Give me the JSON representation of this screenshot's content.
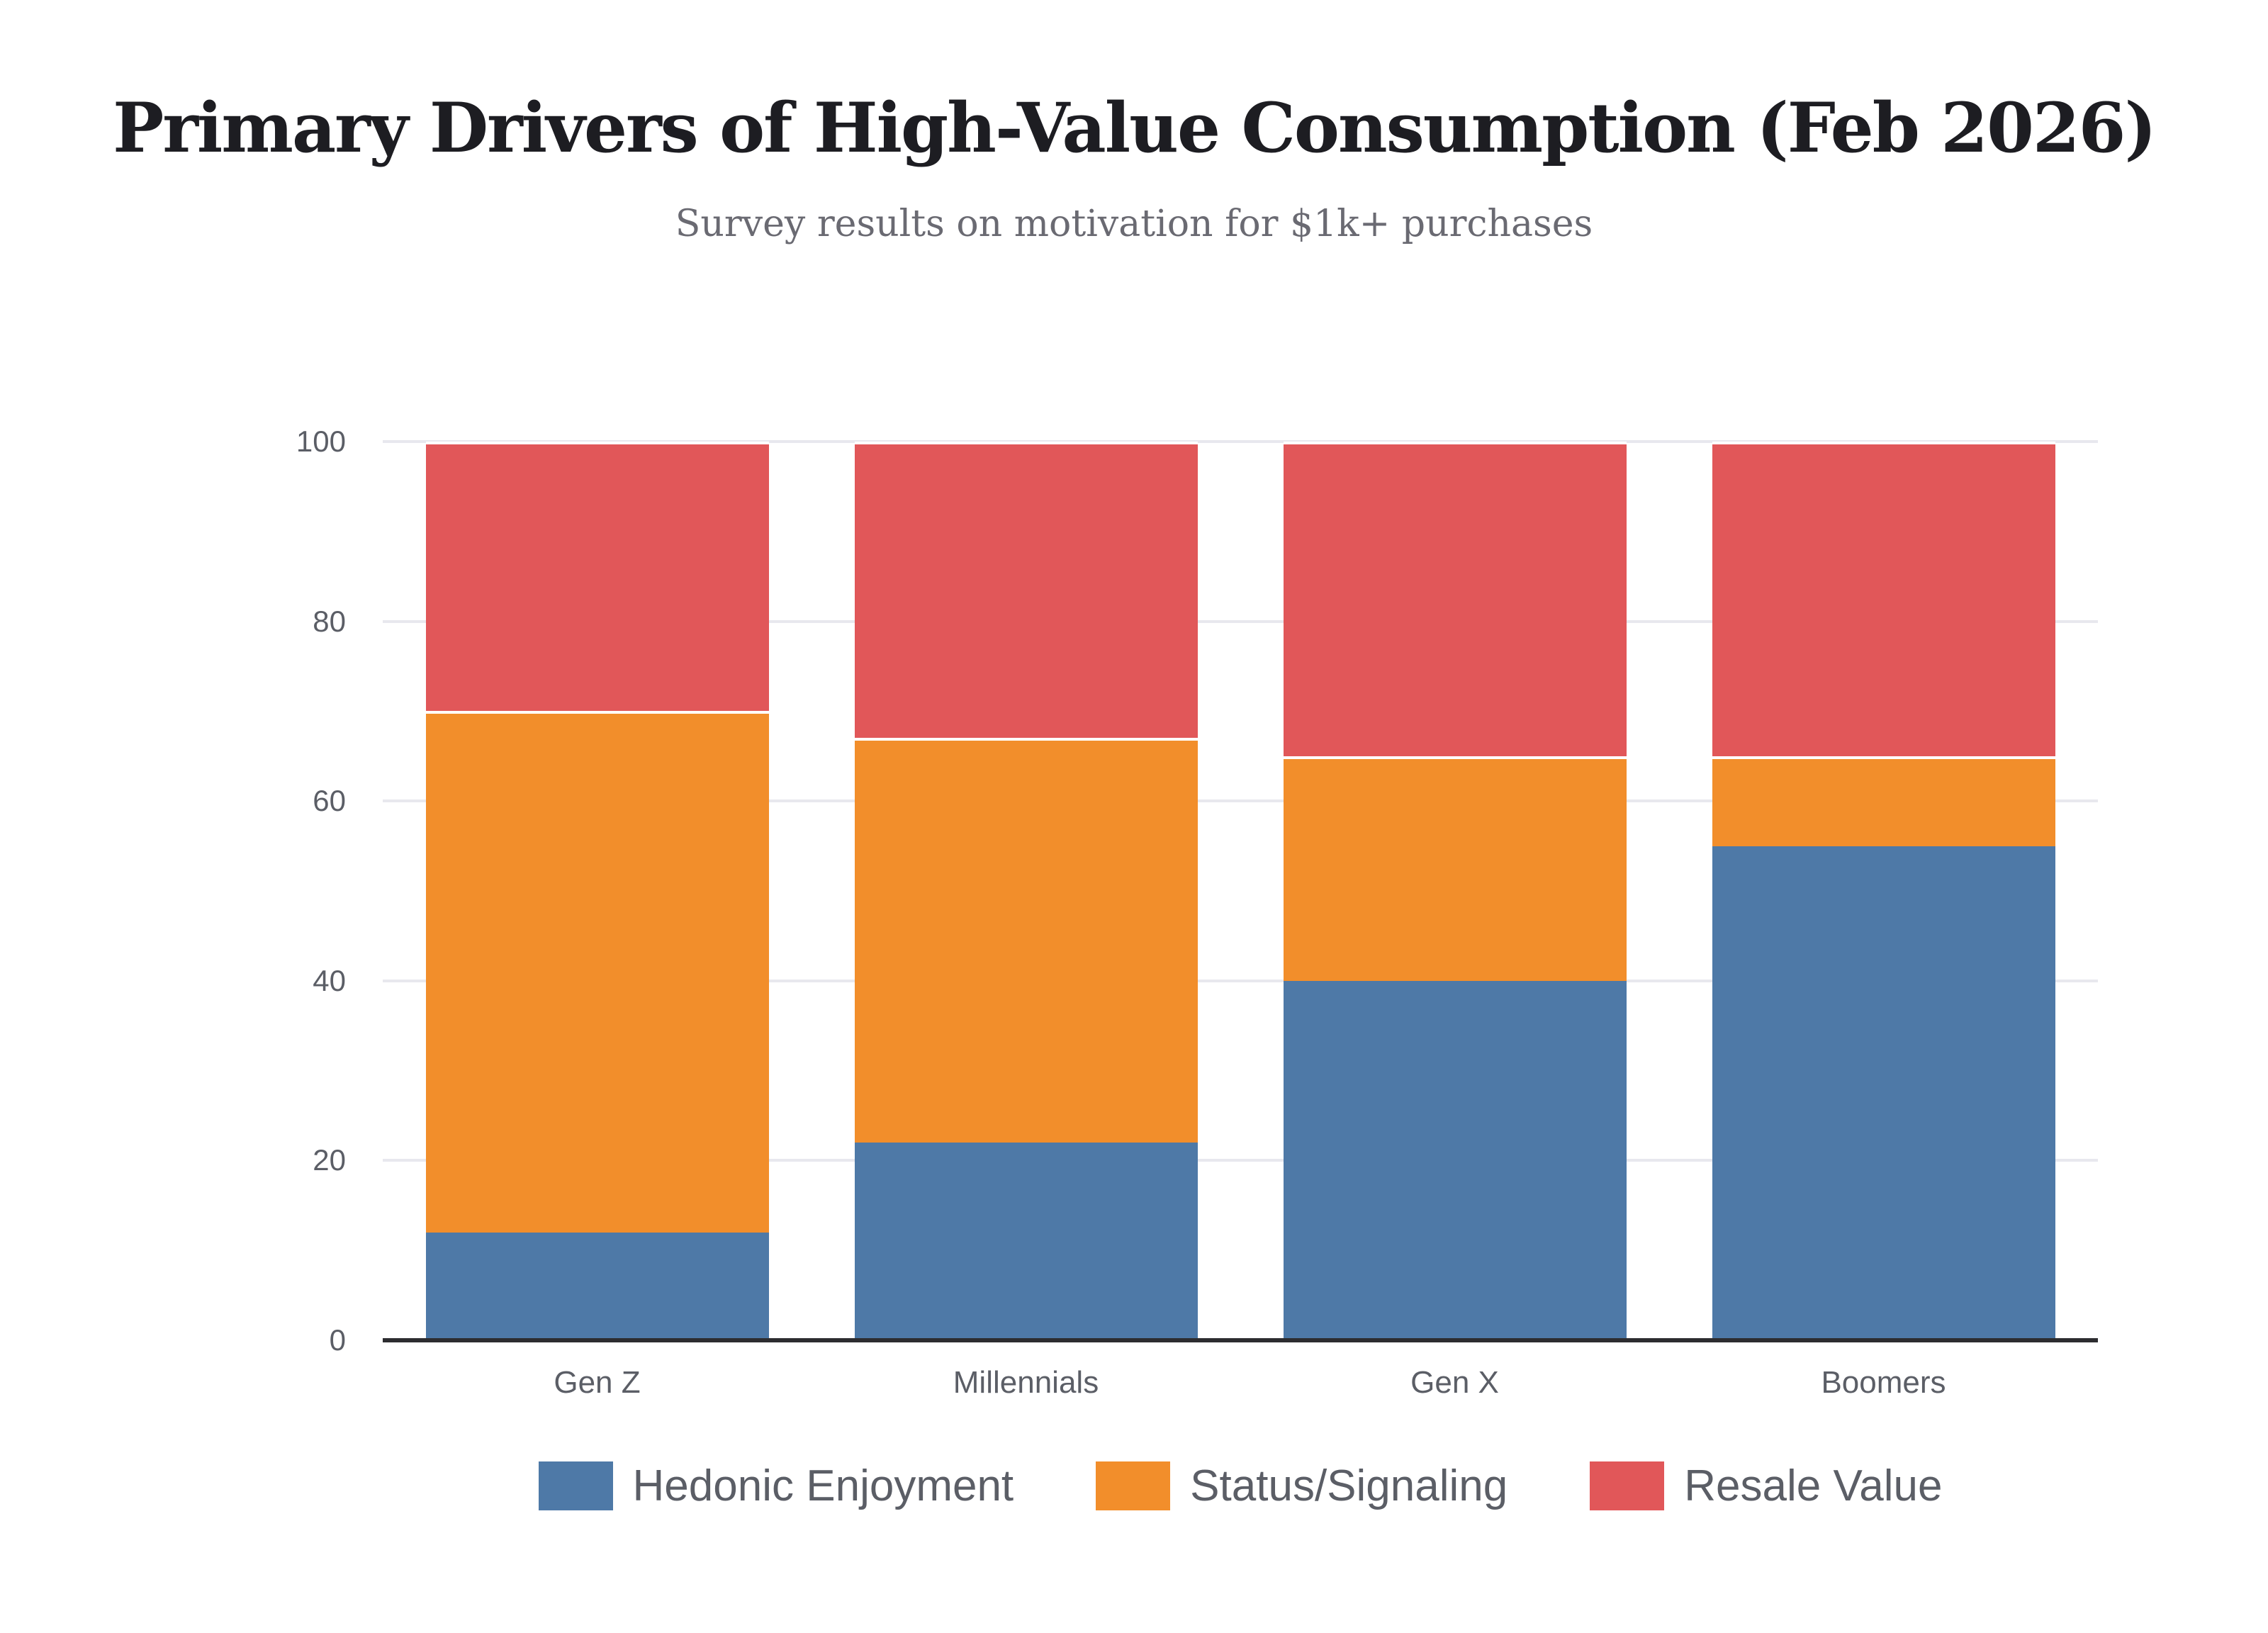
{
  "chart_data": {
    "type": "bar",
    "stacked": true,
    "title": "Primary Drivers of High-Value Consumption (Feb 2026)",
    "subtitle": "Survey results on motivation for $1k+ purchases",
    "categories": [
      "Gen Z",
      "Millennials",
      "Gen X",
      "Boomers"
    ],
    "series": [
      {
        "name": "Hedonic Enjoyment",
        "color": "#4E79A7",
        "values": [
          12,
          22,
          40,
          55
        ]
      },
      {
        "name": "Status/Signaling",
        "color": "#F28E2B",
        "values": [
          58,
          45,
          25,
          10
        ]
      },
      {
        "name": "Resale Value",
        "color": "#E15759",
        "values": [
          30,
          33,
          35,
          35
        ]
      }
    ],
    "ylim": [
      0,
      100
    ],
    "yticks": [
      0,
      20,
      40,
      60,
      80,
      100
    ],
    "grid": "horizontal",
    "legend_position": "bottom",
    "colors": {
      "background": "#ffffff",
      "gridline": "#e8e8ee",
      "axis_line": "#2d2d30",
      "tick_text": "#5b5e66",
      "title_text": "#1d1d22",
      "subtitle_text": "#6a6a72"
    }
  }
}
